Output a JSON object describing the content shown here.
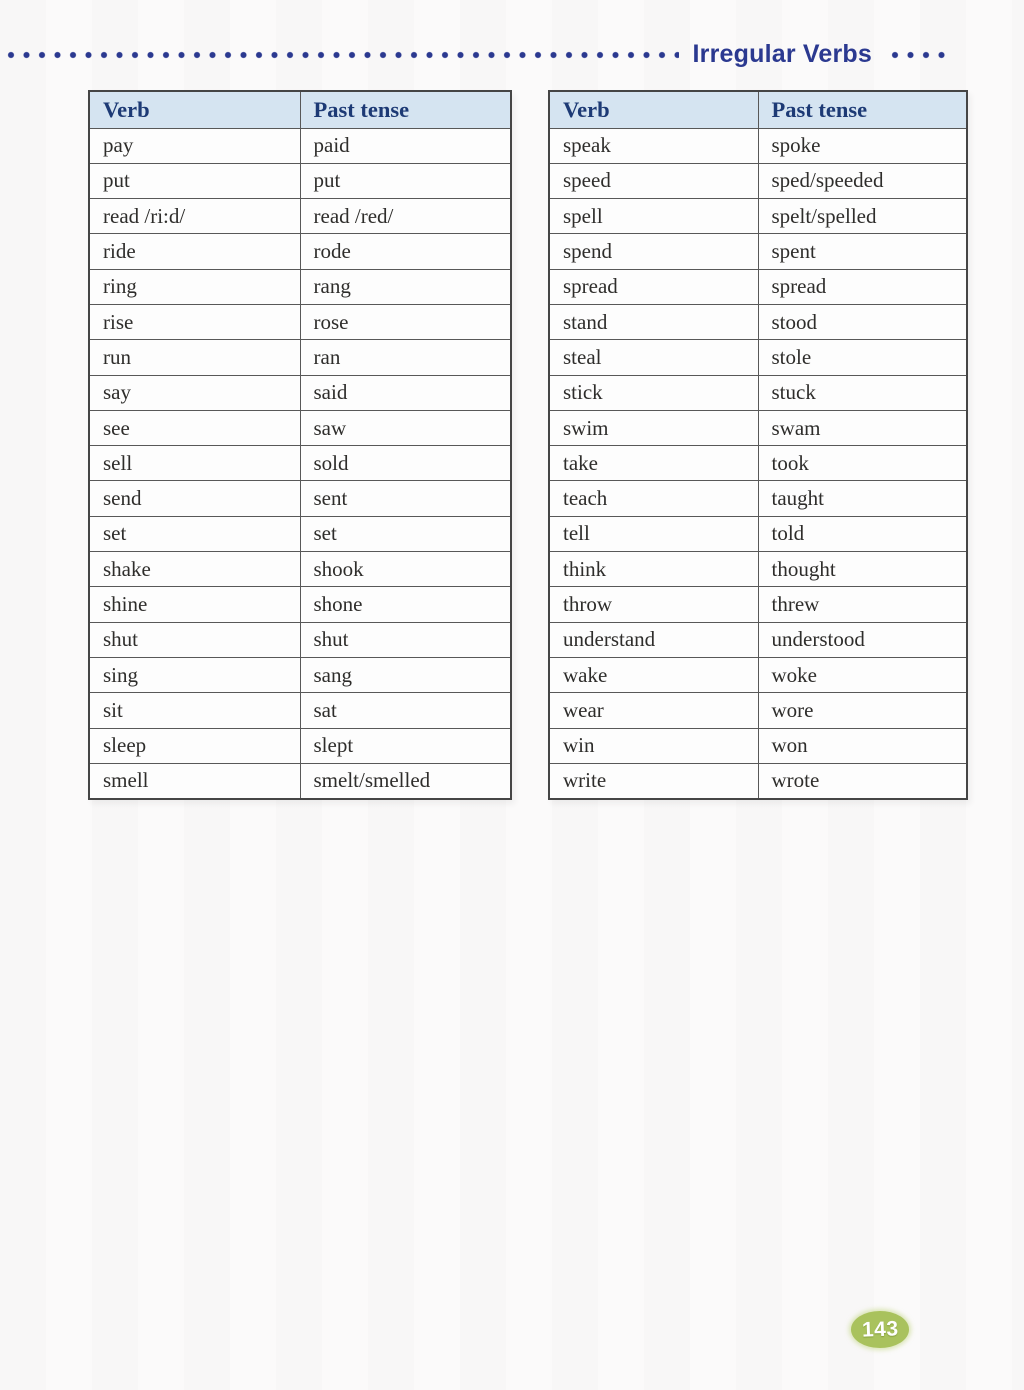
{
  "page": {
    "title": "Irregular Verbs",
    "page_number": "143",
    "colors": {
      "accent_navy": "#2b3990",
      "table_header_bg": "#d5e4f1",
      "table_header_text": "#1d3a75",
      "body_text": "#2e2d2b",
      "badge_green": "#a9c25d",
      "badge_text": "#ffffff"
    }
  },
  "tables": [
    {
      "headers": [
        "Verb",
        "Past tense"
      ],
      "rows": [
        [
          "pay",
          "paid"
        ],
        [
          "put",
          "put"
        ],
        [
          "read /ri:d/",
          "read /red/"
        ],
        [
          "ride",
          "rode"
        ],
        [
          "ring",
          "rang"
        ],
        [
          "rise",
          "rose"
        ],
        [
          "run",
          "ran"
        ],
        [
          "say",
          "said"
        ],
        [
          "see",
          "saw"
        ],
        [
          "sell",
          "sold"
        ],
        [
          "send",
          "sent"
        ],
        [
          "set",
          "set"
        ],
        [
          "shake",
          "shook"
        ],
        [
          "shine",
          "shone"
        ],
        [
          "shut",
          "shut"
        ],
        [
          "sing",
          "sang"
        ],
        [
          "sit",
          "sat"
        ],
        [
          "sleep",
          "slept"
        ],
        [
          "smell",
          "smelt/smelled"
        ]
      ]
    },
    {
      "headers": [
        "Verb",
        "Past tense"
      ],
      "rows": [
        [
          "speak",
          "spoke"
        ],
        [
          "speed",
          "sped/speeded"
        ],
        [
          "spell",
          "spelt/spelled"
        ],
        [
          "spend",
          "spent"
        ],
        [
          "spread",
          "spread"
        ],
        [
          "stand",
          "stood"
        ],
        [
          "steal",
          "stole"
        ],
        [
          "stick",
          "stuck"
        ],
        [
          "swim",
          "swam"
        ],
        [
          "take",
          "took"
        ],
        [
          "teach",
          "taught"
        ],
        [
          "tell",
          "told"
        ],
        [
          "think",
          "thought"
        ],
        [
          "throw",
          "threw"
        ],
        [
          "understand",
          "understood"
        ],
        [
          "wake",
          "woke"
        ],
        [
          "wear",
          "wore"
        ],
        [
          "win",
          "won"
        ],
        [
          "write",
          "wrote"
        ]
      ]
    }
  ]
}
